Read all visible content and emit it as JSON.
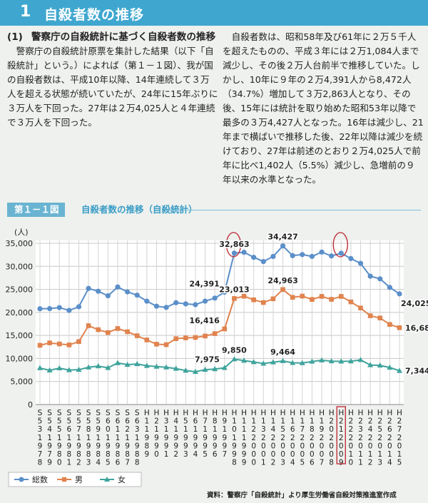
{
  "section": {
    "number": "1",
    "title": "自殺者数の推移"
  },
  "subsection": {
    "number": "(1)",
    "title": "警察庁の自殺統計に基づく自殺者数の推移"
  },
  "paragraphs": [
    "警察庁の自殺統計原票を集計した結果（以下「自殺統計」という。）によれば（第１－１図）、我が国の自殺者数は、平成10年以降、14年連続して３万人を超える状態が続いていたが、24年に15年ぶりに３万人を下回った。27年は２万4,025人と４年連続で３万人を下回った。",
    "自殺者数は、昭和58年及び61年に２万５千人を超えたものの、平成３年には２万1,084人まで減少し、その後２万人台前半で推移していた。しかし、10年に９年の２万4,391人から8,472人（34.7%）増加して３万2,863人となり、その後、15年には統計を取り始めた昭和53年以降で最多の３万4,427人となった。16年は減少し、21年まで横ばいで推移した後、22年以降は減少を続けており、27年は前述のとおり２万4,025人で前年に比べ1,402人（5.5%）減少し、急増前の９年以来の水準となった。"
  ],
  "figure": {
    "label": "第１－１図",
    "title": "自殺者数の推移（自殺統計）"
  },
  "source": "資料：警察庁「自殺統計」より厚生労働省自殺対策推進室作成",
  "chart_data": {
    "type": "line",
    "y_unit": "(人)",
    "ylim": [
      0,
      35000
    ],
    "yticks": [
      "0",
      "5,000",
      "10,000",
      "15,000",
      "20,000",
      "25,000",
      "30,000",
      "35,000"
    ],
    "grid": true,
    "legend_position": "bottom-left",
    "categories": [
      "S53",
      "S54",
      "S55",
      "S56",
      "S57",
      "S58",
      "S59",
      "S60",
      "S61",
      "S62",
      "S63",
      "H1",
      "H2",
      "H3",
      "H4",
      "H5",
      "H6",
      "H7",
      "H8",
      "H9",
      "H10",
      "H11",
      "H12",
      "H13",
      "H14",
      "H15",
      "H16",
      "H17",
      "H18",
      "H19",
      "H20",
      "H21",
      "H22",
      "H23",
      "H24",
      "H25",
      "H26",
      "H27"
    ],
    "tick_labels": [
      "S\n5\n3\n1\n9\n7\n8",
      "S\n5\n4\n1\n9\n7\n9",
      "S\n5\n5\n1\n9\n8\n0",
      "S\n5\n6\n1\n9\n8\n1",
      "S\n5\n7\n1\n9\n8\n2",
      "S\n5\n8\n1\n9\n8\n3",
      "S\n5\n9\n1\n9\n8\n4",
      "S\n6\n0\n1\n9\n8\n5",
      "S\n6\n1\n1\n9\n8\n6",
      "S\n6\n2\n1\n9\n8\n7",
      "S\n6\n3\n1\n9\n8\n8",
      "H\n1\n1\n9\n8\n9",
      "H\n2\n1\n9\n9\n0",
      "H\n3\n1\n9\n9\n1",
      "H\n4\n1\n9\n9\n2",
      "H\n5\n1\n9\n9\n3",
      "H\n6\n1\n9\n9\n4",
      "H\n7\n1\n9\n9\n5",
      "H\n8\n1\n9\n9\n6",
      "H\n9\n1\n9\n9\n7",
      "H\n1\n0\n1\n9\n9\n8",
      "H\n1\n1\n1\n9\n9\n9",
      "H\n1\n2\n2\n0\n0\n0",
      "H\n1\n3\n2\n0\n0\n1",
      "H\n1\n4\n2\n0\n0\n2",
      "H\n1\n5\n2\n0\n0\n3",
      "H\n1\n6\n2\n0\n0\n4",
      "H\n1\n7\n2\n0\n0\n5",
      "H\n1\n8\n2\n0\n0\n6",
      "H\n1\n9\n2\n0\n0\n7",
      "H\n2\n0\n2\n0\n0\n8",
      "H\n2\n1\n2\n0\n0\n9",
      "H\n2\n2\n2\n0\n1\n0",
      "H\n2\n3\n2\n0\n1\n1",
      "H\n2\n4\n2\n0\n1\n2",
      "H\n2\n5\n2\n0\n1\n3",
      "H\n2\n6\n2\n0\n1\n4",
      "H\n2\n7\n2\n0\n1\n5"
    ],
    "series": [
      {
        "name": "総数",
        "color": "#5b8fc9",
        "marker": "circle",
        "values": [
          20788,
          20823,
          21048,
          20434,
          21228,
          25202,
          24596,
          23599,
          25524,
          24460,
          23742,
          22436,
          21346,
          21084,
          22104,
          21851,
          21679,
          22445,
          23104,
          24391,
          32863,
          33048,
          31957,
          31042,
          32143,
          34427,
          32325,
          32552,
          32155,
          33093,
          32249,
          32845,
          31690,
          30651,
          27858,
          27283,
          25427,
          24025
        ]
      },
      {
        "name": "男",
        "color": "#e0834e",
        "marker": "square",
        "values": [
          12859,
          13386,
          13155,
          12942,
          13654,
          17116,
          16251,
          15624,
          16497,
          15802,
          14934,
          14018,
          13102,
          12997,
          14296,
          14468,
          14560,
          14874,
          15393,
          16416,
          23013,
          23512,
          22727,
          22144,
          22952,
          24963,
          23272,
          23540,
          22813,
          23478,
          22831,
          23472,
          22283,
          20955,
          19273,
          18787,
          17386,
          16681
        ]
      },
      {
        "name": "女",
        "color": "#3fa39c",
        "marker": "triangle",
        "values": [
          7929,
          7437,
          7893,
          7492,
          7574,
          8086,
          8345,
          7975,
          9027,
          8658,
          8808,
          8418,
          8244,
          8087,
          7808,
          7383,
          7119,
          7571,
          7711,
          7975,
          9850,
          9536,
          9230,
          8898,
          9191,
          9464,
          9053,
          9012,
          9342,
          9615,
          9418,
          9373,
          9407,
          9696,
          8585,
          8496,
          8041,
          7344
        ]
      }
    ],
    "annotations": [
      {
        "series": 0,
        "index": 19,
        "text": "24,391",
        "pos": "left"
      },
      {
        "series": 0,
        "index": 20,
        "text": "32,863",
        "pos": "above"
      },
      {
        "series": 0,
        "index": 25,
        "text": "34,427",
        "pos": "above"
      },
      {
        "series": 0,
        "index": 37,
        "text": "24,025",
        "pos": "below"
      },
      {
        "series": 1,
        "index": 19,
        "text": "16,416",
        "pos": "left"
      },
      {
        "series": 1,
        "index": 20,
        "text": "23,013",
        "pos": "above"
      },
      {
        "series": 1,
        "index": 25,
        "text": "24,963",
        "pos": "above"
      },
      {
        "series": 1,
        "index": 37,
        "text": "16,681",
        "pos": "right"
      },
      {
        "series": 2,
        "index": 19,
        "text": "7,975",
        "pos": "left"
      },
      {
        "series": 2,
        "index": 20,
        "text": "9,850",
        "pos": "above"
      },
      {
        "series": 2,
        "index": 25,
        "text": "9,464",
        "pos": "above"
      },
      {
        "series": 2,
        "index": 37,
        "text": "7,344",
        "pos": "right"
      }
    ],
    "circled_indices": [
      20,
      31
    ],
    "highlighted_tick_indices": [
      31
    ]
  }
}
